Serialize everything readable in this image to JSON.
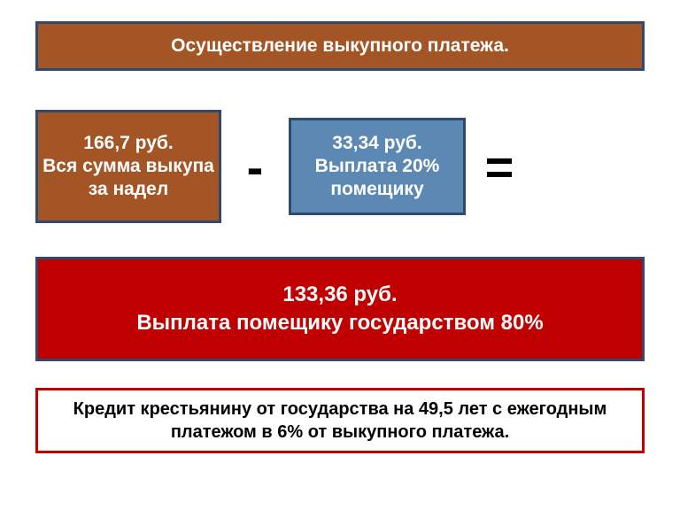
{
  "colors": {
    "brown_bg": "#a35525",
    "brown_border": "#2f4a6e",
    "blue_bg": "#5b89b4",
    "blue_border": "#2f4a6e",
    "red_bg": "#c00000",
    "red_border": "#2f4a6e",
    "white_bg": "#ffffff",
    "white_text": "#ffffff",
    "black_text": "#000000",
    "footer_border": "#c00000"
  },
  "title": {
    "text": "Осуществление выкупного платежа.",
    "fontsize": 21,
    "bg": "#a35525",
    "border": "#2f4a6e",
    "text_color": "#ffffff"
  },
  "equation": {
    "total": {
      "line1": "166,7 руб.",
      "line2": "Вся сумма выкупа за надел",
      "bg": "#a35525",
      "border": "#2f4a6e",
      "text_color": "#ffffff",
      "fontsize": 21
    },
    "minus": "-",
    "deduction": {
      "line1": "33,34 руб.",
      "line2": "Выплата 20% помещику",
      "bg": "#5b89b4",
      "border": "#2f4a6e",
      "text_color": "#ffffff",
      "fontsize": 21
    },
    "equals": "="
  },
  "result": {
    "line1": "133,36 руб.",
    "line2": "Выплата помещику государством 80%",
    "bg": "#c00000",
    "border": "#2f4a6e",
    "text_color": "#ffffff",
    "fontsize": 24
  },
  "footer": {
    "text": "Кредит крестьянину от государства на 49,5 лет с ежегодным платежом в 6% от выкупного платежа.",
    "bg": "#ffffff",
    "border": "#c00000",
    "text_color": "#000000",
    "fontsize": 20
  }
}
